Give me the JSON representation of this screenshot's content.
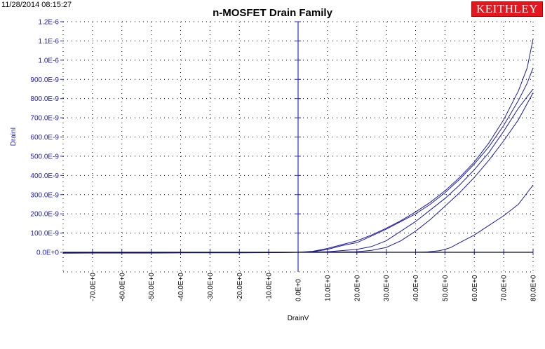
{
  "timestamp": "11/28/2014 08:15:27",
  "brand": "KEITHLEY",
  "colors": {
    "series": "#1a1aa8",
    "axis": "#2a2ad0",
    "ytext": "#1a1acc",
    "brand": "#e3171d",
    "zero_trace": "#000000"
  },
  "chart_data": {
    "type": "line",
    "title": "n-MOSFET Drain Family",
    "xlabel": "DrainV",
    "ylabel": "DrainI",
    "xlim": [
      -80,
      80
    ],
    "ylim": [
      0,
      1.2e-06
    ],
    "grid": true,
    "xticks": [
      -70,
      -60,
      -50,
      -40,
      -30,
      -20,
      -10,
      0,
      10,
      20,
      30,
      40,
      50,
      60,
      70,
      80
    ],
    "xtick_labels": [
      "-70.0E+0",
      "-60.0E+0",
      "-50.0E+0",
      "-40.0E+0",
      "-30.0E+0",
      "-20.0E+0",
      "-10.0E+0",
      "0.0E+0",
      "10.0E+0",
      "20.0E+0",
      "30.0E+0",
      "40.0E+0",
      "50.0E+0",
      "60.0E+0",
      "70.0E+0",
      "80.0E+0"
    ],
    "yticks": [
      0,
      1e-07,
      2e-07,
      3e-07,
      4e-07,
      5e-07,
      6e-07,
      7e-07,
      8e-07,
      9e-07,
      1e-06,
      1.1e-06,
      1.2e-06
    ],
    "ytick_labels": [
      "0.0E+0",
      "100.0E-9",
      "200.0E-9",
      "300.0E-9",
      "400.0E-9",
      "500.0E-9",
      "600.0E-9",
      "700.0E-9",
      "800.0E-9",
      "900.0E-9",
      "1.0E-6",
      "1.1E-6",
      "1.2E-6"
    ],
    "series": [
      {
        "x": [
          -80,
          -70,
          -60,
          -50,
          -40,
          -30,
          -20,
          -10,
          -5,
          0,
          5,
          10,
          15,
          20,
          25,
          30,
          35,
          40,
          45,
          50,
          55,
          60,
          65,
          70,
          75,
          78,
          80
        ],
        "y": [
          -2e-09,
          -2e-09,
          -2e-09,
          -2e-09,
          -2e-09,
          -2e-09,
          -2e-09,
          -2e-09,
          -1e-09,
          0,
          5e-09,
          2e-08,
          4e-08,
          6e-08,
          9e-08,
          1.25e-07,
          1.65e-07,
          2.1e-07,
          2.6e-07,
          3.2e-07,
          3.9e-07,
          4.7e-07,
          5.7e-07,
          6.9e-07,
          8.4e-07,
          9.6e-07,
          1.11e-06
        ]
      },
      {
        "x": [
          -80,
          -70,
          -60,
          -50,
          -40,
          -30,
          -20,
          -10,
          -5,
          0,
          5,
          10,
          15,
          20,
          25,
          30,
          35,
          40,
          45,
          50,
          55,
          60,
          65,
          70,
          75,
          78,
          80
        ],
        "y": [
          -5e-09,
          -4e-09,
          -4e-09,
          -4e-09,
          -3e-09,
          -3e-09,
          -3e-09,
          -2e-09,
          -1e-09,
          0,
          3e-09,
          1.5e-08,
          3.5e-08,
          5e-08,
          8.5e-08,
          1.2e-07,
          1.6e-07,
          2e-07,
          2.5e-07,
          3.1e-07,
          3.8e-07,
          4.6e-07,
          5.5e-07,
          6.6e-07,
          7.9e-07,
          8.8e-07,
          9.6e-07
        ]
      },
      {
        "x": [
          -80,
          -60,
          -40,
          -20,
          -10,
          0,
          10,
          20,
          25,
          30,
          35,
          40,
          45,
          50,
          55,
          60,
          65,
          70,
          75,
          80
        ],
        "y": [
          -1e-09,
          -1e-09,
          -1e-09,
          -1e-09,
          -1e-09,
          0,
          3e-09,
          1.5e-08,
          3e-08,
          6e-08,
          1.1e-07,
          1.6e-07,
          2.2e-07,
          2.8e-07,
          3.5e-07,
          4.3e-07,
          5.2e-07,
          6.3e-07,
          7.5e-07,
          8.5e-07
        ]
      },
      {
        "x": [
          -80,
          -60,
          -40,
          -20,
          0,
          10,
          20,
          25,
          30,
          35,
          40,
          45,
          50,
          55,
          60,
          65,
          70,
          75,
          80
        ],
        "y": [
          0,
          0,
          0,
          0,
          0,
          1e-09,
          3e-09,
          1e-08,
          2.5e-08,
          6e-08,
          1.1e-07,
          1.7e-07,
          2.4e-07,
          3.1e-07,
          3.9e-07,
          4.8e-07,
          5.8e-07,
          6.9e-07,
          8.3e-07
        ]
      },
      {
        "x": [
          -80,
          -60,
          -40,
          -20,
          0,
          20,
          40,
          44,
          48,
          50,
          52,
          55,
          60,
          65,
          70,
          75,
          80
        ],
        "y": [
          0,
          0,
          0,
          0,
          0,
          0,
          0,
          2e-09,
          8e-09,
          1.5e-08,
          2.5e-08,
          5e-08,
          9e-08,
          1.4e-07,
          1.9e-07,
          2.5e-07,
          3.5e-07
        ]
      },
      {
        "x": [
          -80,
          80
        ],
        "y": [
          0,
          0
        ],
        "color": "zero_trace"
      }
    ]
  }
}
